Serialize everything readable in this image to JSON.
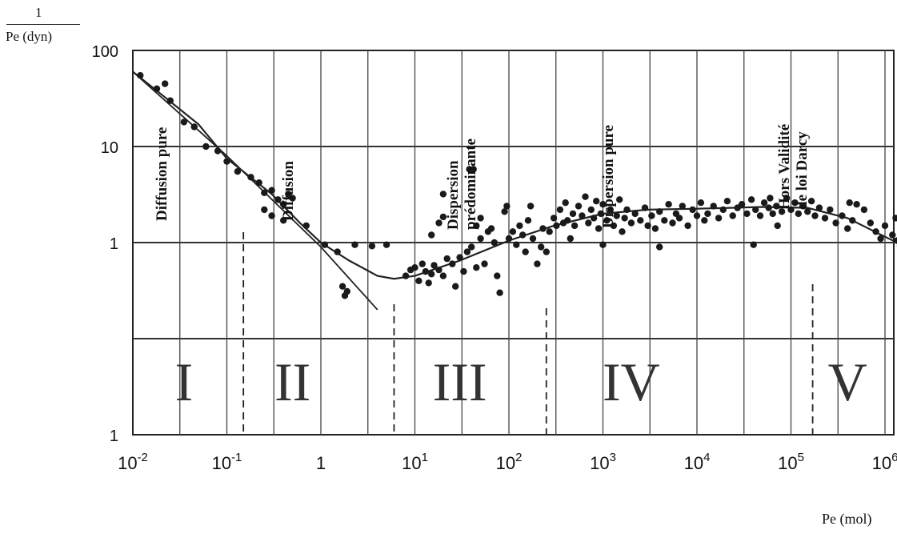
{
  "chart_data": {
    "type": "scatter",
    "title": "",
    "ylabel_numerator": "1",
    "ylabel_denominator": "Pe (dyn)",
    "xlabel": "Pe (mol)",
    "x_scale": "log",
    "y_scale": "log",
    "xlim": [
      0.01,
      1500000
    ],
    "ylim": [
      0.01,
      100
    ],
    "grid": true,
    "x_ticks": [
      {
        "base": "10",
        "exp": "-2"
      },
      {
        "base": "10",
        "exp": "-1"
      },
      {
        "base": "1",
        "exp": ""
      },
      {
        "base": "10",
        "exp": "1"
      },
      {
        "base": "10",
        "exp": "2"
      },
      {
        "base": "10",
        "exp": "3"
      },
      {
        "base": "10",
        "exp": "4"
      },
      {
        "base": "10",
        "exp": "5"
      },
      {
        "base": "10",
        "exp": "6"
      }
    ],
    "y_ticks": [
      "100",
      "10",
      "1",
      "1"
    ],
    "zones": [
      {
        "numeral": "I",
        "label_lines": [
          "Diffusion pure"
        ]
      },
      {
        "numeral": "II",
        "label_lines": [
          "Diffusion"
        ]
      },
      {
        "numeral": "III",
        "label_lines": [
          "Dispersion",
          "prédominante"
        ]
      },
      {
        "numeral": "IV",
        "label_lines": [
          "Dispersion pure"
        ]
      },
      {
        "numeral": "V",
        "label_lines": [
          "Hors   Validité",
          "de loi Darcy"
        ]
      }
    ],
    "zone_boundaries_x": [
      0.15,
      6,
      250,
      170000
    ],
    "curve": [
      [
        0.01,
        60
      ],
      [
        0.02,
        35
      ],
      [
        0.05,
        17
      ],
      [
        0.1,
        7.5
      ],
      [
        0.3,
        3.2
      ],
      [
        0.6,
        1.6
      ],
      [
        1,
        1
      ],
      [
        2,
        0.65
      ],
      [
        4,
        0.45
      ],
      [
        6,
        0.42
      ],
      [
        10,
        0.45
      ],
      [
        30,
        0.65
      ],
      [
        100,
        1.05
      ],
      [
        300,
        1.5
      ],
      [
        1000,
        2
      ],
      [
        3000,
        2.2
      ],
      [
        10000,
        2.25
      ],
      [
        50000,
        2.35
      ],
      [
        150000,
        2.3
      ],
      [
        400000,
        1.8
      ],
      [
        1000000,
        1.15
      ],
      [
        1500000,
        0.95
      ]
    ],
    "diffusion_line": [
      [
        0.01,
        60
      ],
      [
        0.1,
        8
      ],
      [
        1,
        0.9
      ],
      [
        4,
        0.2
      ]
    ],
    "points": [
      [
        0.012,
        55
      ],
      [
        0.018,
        40
      ],
      [
        0.022,
        45
      ],
      [
        0.025,
        30
      ],
      [
        0.035,
        18
      ],
      [
        0.045,
        16
      ],
      [
        0.06,
        10
      ],
      [
        0.08,
        9
      ],
      [
        0.1,
        7
      ],
      [
        0.13,
        5.5
      ],
      [
        0.18,
        4.8
      ],
      [
        0.22,
        4.2
      ],
      [
        0.25,
        3.3
      ],
      [
        0.3,
        3.5
      ],
      [
        0.35,
        2.8
      ],
      [
        0.4,
        2.5
      ],
      [
        0.45,
        3.2
      ],
      [
        0.5,
        2.9
      ],
      [
        0.25,
        2.2
      ],
      [
        0.3,
        1.9
      ],
      [
        0.4,
        1.7
      ],
      [
        0.7,
        1.5
      ],
      [
        1.1,
        0.95
      ],
      [
        1.5,
        0.8
      ],
      [
        1.8,
        0.28
      ],
      [
        1.9,
        0.31
      ],
      [
        1.7,
        0.35
      ],
      [
        2.3,
        0.95
      ],
      [
        3.5,
        0.92
      ],
      [
        5,
        0.95
      ],
      [
        8,
        0.45
      ],
      [
        9,
        0.52
      ],
      [
        10,
        0.55
      ],
      [
        11,
        0.4
      ],
      [
        12,
        0.6
      ],
      [
        13,
        0.5
      ],
      [
        14,
        0.38
      ],
      [
        15,
        0.47
      ],
      [
        16,
        0.58
      ],
      [
        18,
        0.52
      ],
      [
        20,
        0.45
      ],
      [
        22,
        0.68
      ],
      [
        25,
        0.6
      ],
      [
        27,
        0.35
      ],
      [
        30,
        0.7
      ],
      [
        33,
        0.5
      ],
      [
        36,
        0.8
      ],
      [
        40,
        0.9
      ],
      [
        45,
        0.55
      ],
      [
        50,
        1.1
      ],
      [
        55,
        0.6
      ],
      [
        60,
        1.3
      ],
      [
        65,
        1.4
      ],
      [
        70,
        1.0
      ],
      [
        75,
        0.45
      ],
      [
        80,
        0.3
      ],
      [
        18,
        1.6
      ],
      [
        20,
        1.85
      ],
      [
        15,
        1.2
      ],
      [
        45,
        1.5
      ],
      [
        50,
        1.8
      ],
      [
        90,
        2.1
      ],
      [
        100,
        1.1
      ],
      [
        110,
        1.3
      ],
      [
        120,
        0.95
      ],
      [
        130,
        1.5
      ],
      [
        140,
        1.2
      ],
      [
        150,
        0.8
      ],
      [
        160,
        1.7
      ],
      [
        170,
        2.4
      ],
      [
        180,
        1.1
      ],
      [
        200,
        0.6
      ],
      [
        220,
        0.9
      ],
      [
        230,
        1.4
      ],
      [
        250,
        0.8
      ],
      [
        270,
        1.3
      ],
      [
        300,
        1.8
      ],
      [
        320,
        1.5
      ],
      [
        350,
        2.2
      ],
      [
        380,
        1.6
      ],
      [
        400,
        2.6
      ],
      [
        420,
        1.7
      ],
      [
        450,
        1.1
      ],
      [
        480,
        2.0
      ],
      [
        500,
        1.5
      ],
      [
        550,
        2.4
      ],
      [
        600,
        1.9
      ],
      [
        650,
        3.0
      ],
      [
        700,
        1.6
      ],
      [
        750,
        2.2
      ],
      [
        800,
        1.8
      ],
      [
        850,
        2.7
      ],
      [
        900,
        1.4
      ],
      [
        950,
        2.0
      ],
      [
        1000,
        2.5
      ],
      [
        1100,
        1.7
      ],
      [
        1200,
        2.2
      ],
      [
        1300,
        1.5
      ],
      [
        1400,
        1.9
      ],
      [
        1500,
        2.8
      ],
      [
        1600,
        1.3
      ],
      [
        1700,
        1.8
      ],
      [
        1800,
        2.2
      ],
      [
        2000,
        1.6
      ],
      [
        2200,
        2.0
      ],
      [
        2500,
        1.7
      ],
      [
        2800,
        2.3
      ],
      [
        3000,
        1.5
      ],
      [
        3300,
        1.9
      ],
      [
        3600,
        1.4
      ],
      [
        4000,
        2.1
      ],
      [
        4500,
        1.7
      ],
      [
        5000,
        2.5
      ],
      [
        5500,
        1.6
      ],
      [
        6000,
        2.0
      ],
      [
        6500,
        1.8
      ],
      [
        7000,
        2.4
      ],
      [
        8000,
        1.5
      ],
      [
        9000,
        2.2
      ],
      [
        10000,
        1.9
      ],
      [
        11000,
        2.6
      ],
      [
        12000,
        1.7
      ],
      [
        13000,
        2.0
      ],
      [
        15000,
        2.4
      ],
      [
        17000,
        1.8
      ],
      [
        19000,
        2.2
      ],
      [
        21000,
        2.7
      ],
      [
        24000,
        1.9
      ],
      [
        27000,
        2.3
      ],
      [
        30000,
        2.5
      ],
      [
        34000,
        2.0
      ],
      [
        38000,
        2.8
      ],
      [
        42000,
        2.2
      ],
      [
        47000,
        1.9
      ],
      [
        52000,
        2.6
      ],
      [
        58000,
        2.3
      ],
      [
        64000,
        2.0
      ],
      [
        70000,
        2.4
      ],
      [
        80000,
        2.1
      ],
      [
        90000,
        2.9
      ],
      [
        100000,
        2.2
      ],
      [
        110000,
        2.6
      ],
      [
        120000,
        2.0
      ],
      [
        135000,
        2.4
      ],
      [
        150000,
        2.1
      ],
      [
        165000,
        2.7
      ],
      [
        180000,
        1.9
      ],
      [
        200000,
        2.3
      ],
      [
        230000,
        1.8
      ],
      [
        260000,
        2.2
      ],
      [
        300000,
        1.6
      ],
      [
        350000,
        1.9
      ],
      [
        400000,
        1.4
      ],
      [
        450000,
        1.7
      ],
      [
        500000,
        2.5
      ],
      [
        600000,
        2.2
      ],
      [
        700000,
        1.6
      ],
      [
        800000,
        1.3
      ],
      [
        900000,
        1.1
      ],
      [
        1000000,
        1.5
      ],
      [
        1200000,
        1.2
      ],
      [
        1350000,
        1.05
      ],
      [
        1450000,
        0.92
      ],
      [
        1300000,
        1.8
      ],
      [
        420000,
        2.6
      ],
      [
        40000,
        0.95
      ],
      [
        60000,
        2.9
      ],
      [
        72000,
        1.5
      ],
      [
        4000,
        0.9
      ],
      [
        1000,
        0.95
      ],
      [
        38,
        5.8
      ],
      [
        42,
        5.8
      ],
      [
        20,
        3.2
      ],
      [
        95,
        2.4
      ]
    ]
  }
}
